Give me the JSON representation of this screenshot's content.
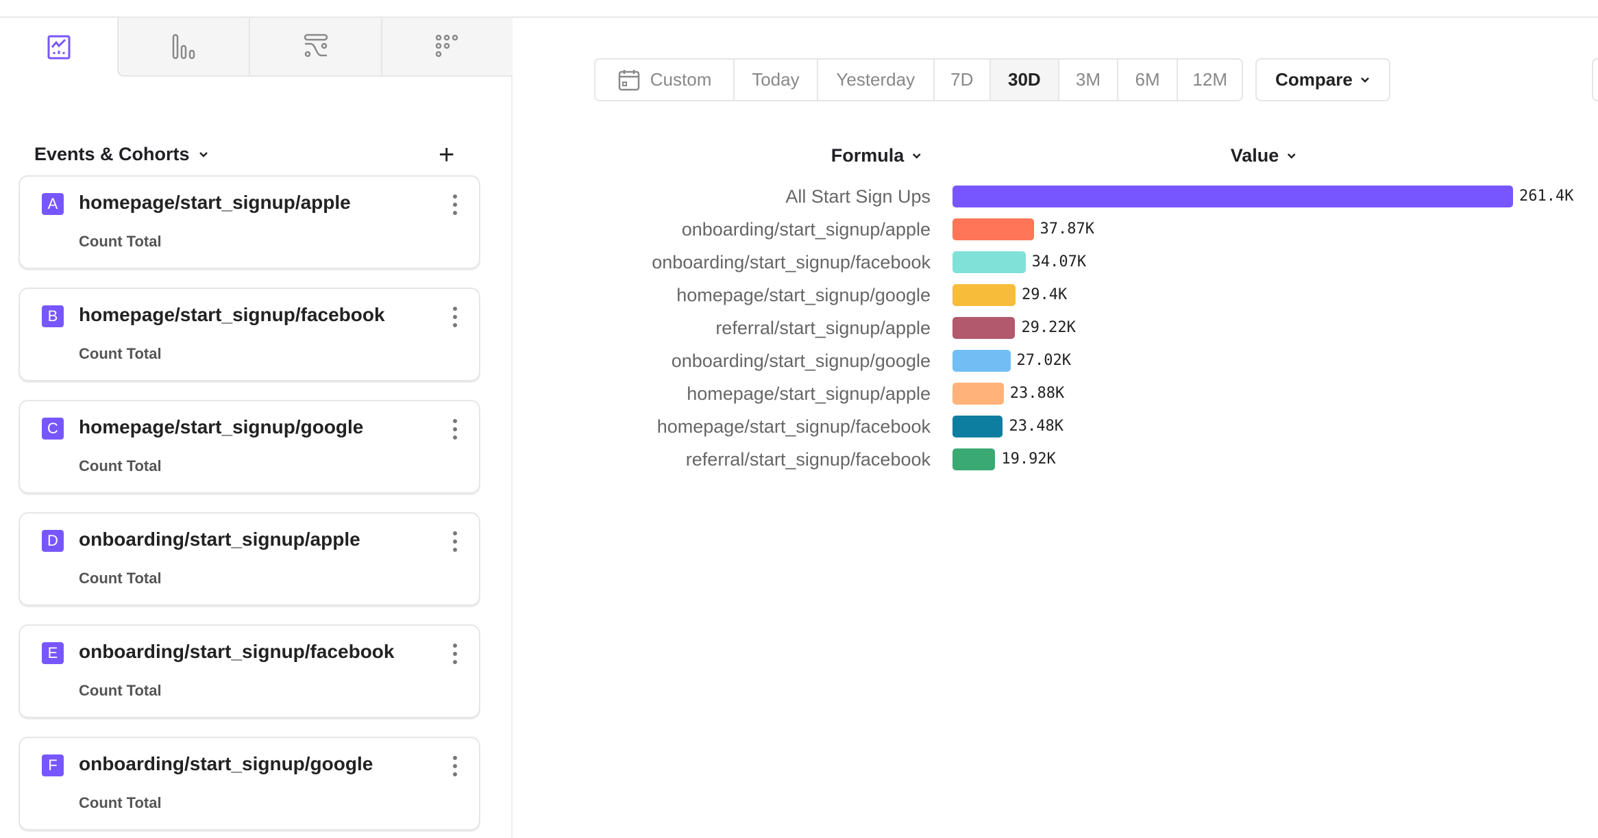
{
  "tabs": [
    {
      "name": "insights",
      "icon": "line-chart-icon",
      "active": true
    },
    {
      "name": "funnels",
      "icon": "bar-chart-icon"
    },
    {
      "name": "flows",
      "icon": "flows-icon"
    },
    {
      "name": "retention",
      "icon": "dots-grid-icon"
    }
  ],
  "sidebar": {
    "title": "Events & Cohorts",
    "add_icon": "plus-icon",
    "items": [
      {
        "letter": "A",
        "name": "homepage/start_signup/apple",
        "measure": "Count Total"
      },
      {
        "letter": "B",
        "name": "homepage/start_signup/facebook",
        "measure": "Count Total"
      },
      {
        "letter": "C",
        "name": "homepage/start_signup/google",
        "measure": "Count Total"
      },
      {
        "letter": "D",
        "name": "onboarding/start_signup/apple",
        "measure": "Count Total"
      },
      {
        "letter": "E",
        "name": "onboarding/start_signup/facebook",
        "measure": "Count Total"
      },
      {
        "letter": "F",
        "name": "onboarding/start_signup/google",
        "measure": "Count Total"
      }
    ]
  },
  "toolbar": {
    "ranges": [
      "Custom",
      "Today",
      "Yesterday",
      "7D",
      "30D",
      "3M",
      "6M",
      "12M"
    ],
    "selected": "30D",
    "compare": "Compare"
  },
  "accent": "#7856FF",
  "chart_data": {
    "type": "bar",
    "orientation": "horizontal",
    "column_headers": [
      "Formula",
      "Value"
    ],
    "categories": [
      "All Start Sign Ups",
      "onboarding/start_signup/apple",
      "onboarding/start_signup/facebook",
      "homepage/start_signup/google",
      "referral/start_signup/apple",
      "onboarding/start_signup/google",
      "homepage/start_signup/apple",
      "homepage/start_signup/facebook",
      "referral/start_signup/facebook"
    ],
    "values": [
      261400,
      37870,
      34070,
      29400,
      29220,
      27020,
      23880,
      23480,
      19920
    ],
    "data_labels": [
      "261.4K",
      "37.87K",
      "34.07K",
      "29.4K",
      "29.22K",
      "27.02K",
      "23.88K",
      "23.48K",
      "19.92K"
    ],
    "colors": [
      "#7856FF",
      "#FF7557",
      "#80E1D9",
      "#F8BC3B",
      "#B2596E",
      "#72BEF4",
      "#FFB27A",
      "#0D7EA0",
      "#3BA974"
    ]
  }
}
